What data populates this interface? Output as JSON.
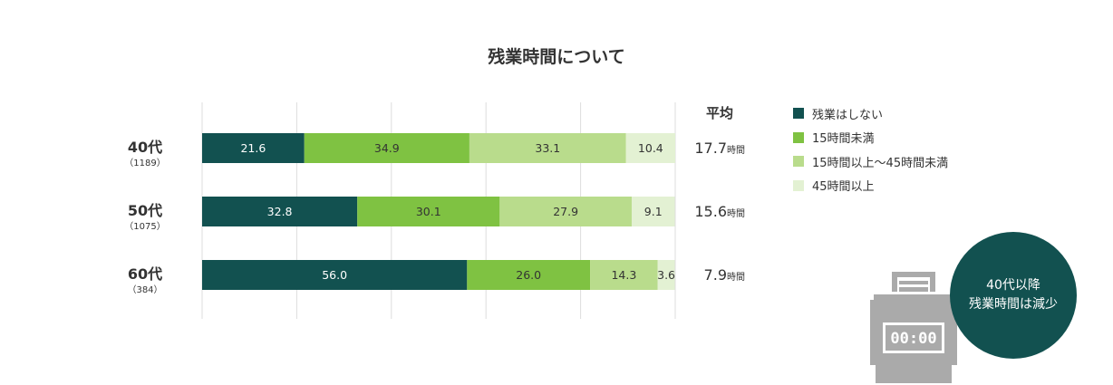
{
  "title": "残業時間について",
  "average_header": "平均",
  "legend": [
    {
      "label": "残業はしない",
      "color": "#125150"
    },
    {
      "label": "15時間未満",
      "color": "#7fc242"
    },
    {
      "label": "15時間以上～45時間未満",
      "color": "#b9dc8c"
    },
    {
      "label": "45時間以上",
      "color": "#e3f1d3"
    }
  ],
  "badge": {
    "line1": "40代以降",
    "line2": "残業時間は減少"
  },
  "timecard_display": "00:00",
  "chart_data": {
    "type": "bar",
    "orientation": "horizontal",
    "stacked": true,
    "unit": "%",
    "xlim": [
      0,
      100
    ],
    "grid": true,
    "legend_position": "right",
    "categories": [
      "40代",
      "50代",
      "60代"
    ],
    "category_counts": [
      "（1189）",
      "（1075）",
      "（384）"
    ],
    "series": [
      {
        "name": "残業はしない",
        "color": "#125150",
        "label_color": "#ffffff",
        "values": [
          21.6,
          32.8,
          56.0
        ]
      },
      {
        "name": "15時間未満",
        "color": "#7fc242",
        "label_color": "#333333",
        "values": [
          34.9,
          30.1,
          26.0
        ]
      },
      {
        "name": "15時間以上～45時間未満",
        "color": "#b9dc8c",
        "label_color": "#333333",
        "values": [
          33.1,
          27.9,
          14.3
        ]
      },
      {
        "name": "45時間以上",
        "color": "#e3f1d3",
        "label_color": "#333333",
        "values": [
          10.4,
          9.1,
          3.6
        ]
      }
    ],
    "averages": [
      "17.7",
      "15.6",
      "7.9"
    ],
    "average_unit": "時間"
  }
}
